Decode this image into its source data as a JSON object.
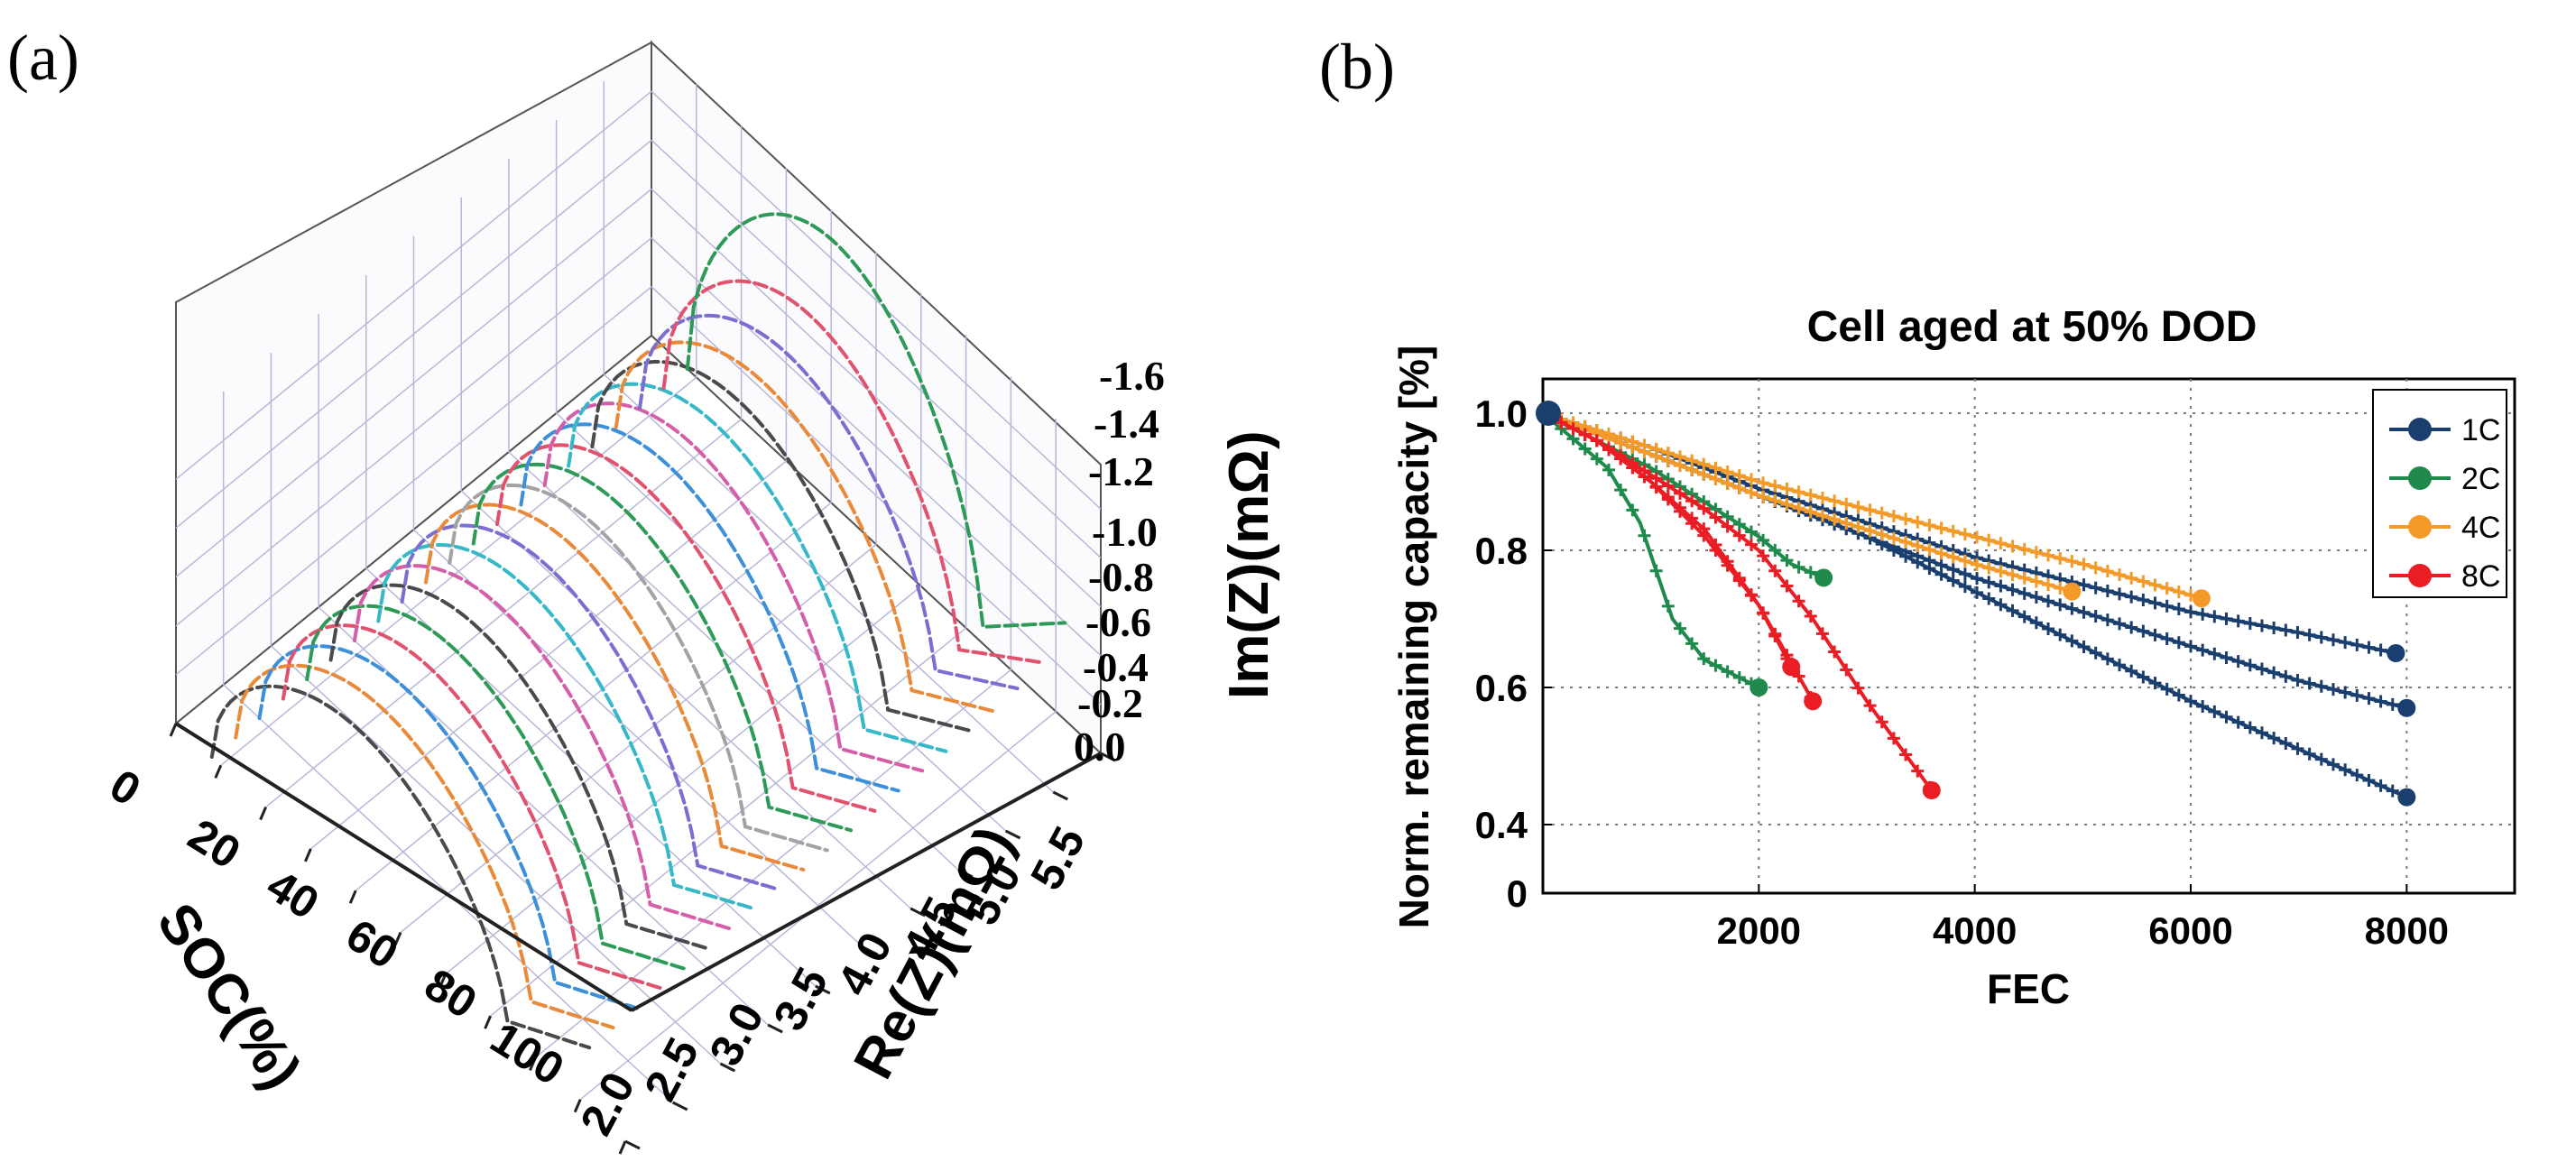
{
  "panels": {
    "a": "(a)",
    "b": "(b)"
  },
  "chart_data": [
    {
      "type": "3d-line",
      "panel": "(a)",
      "title": "",
      "xlabel": "SOC(%)",
      "ylabel": "Re(Z)(mΩ)",
      "zlabel": "Im(Z)(mΩ)",
      "soc_ticks": [
        "0",
        "20",
        "40",
        "60",
        "80",
        "100"
      ],
      "re_ticks": [
        "2.0",
        "2.5",
        "3.0",
        "3.5",
        "4.0",
        "4.5",
        "5.0",
        "5.5"
      ],
      "im_ticks": [
        "-1.6",
        "-1.4",
        "-1.2",
        "-1.0",
        "-0.8",
        "-0.6",
        "-0.4",
        "-0.2",
        "0.0"
      ],
      "soc_range": [
        0,
        100
      ],
      "re_range": [
        2.0,
        5.5
      ],
      "im_range": [
        0.0,
        -1.6
      ],
      "curve_soc": [
        0,
        5,
        10,
        15,
        20,
        25,
        30,
        35,
        40,
        45,
        50,
        55,
        60,
        65,
        70,
        75,
        80,
        85,
        90,
        95,
        100
      ],
      "curve_peak": [
        1.45,
        1.15,
        1.05,
        1.0,
        1.0,
        0.98,
        0.98,
        0.97,
        0.96,
        0.96,
        0.95,
        0.95,
        0.94,
        0.94,
        0.93,
        0.93,
        0.92,
        0.92,
        0.91,
        0.91,
        0.9
      ],
      "curve_colors": [
        "#2e9a58",
        "#e0526e",
        "#7a6fd0",
        "#e98a3a",
        "#4a4a4a",
        "#36b8c8",
        "#d45fa8",
        "#3d8fd8",
        "#e0526e",
        "#2e9a58",
        "#a3a3a3",
        "#e98a3a",
        "#7a6fd0",
        "#36b8c8",
        "#d45fa8",
        "#4a4a4a",
        "#2e9a58",
        "#e0526e",
        "#3d8fd8",
        "#e98a3a",
        "#4a4a4a"
      ]
    },
    {
      "type": "scatter",
      "panel": "(b)",
      "title": "Cell aged at 50% DOD",
      "xlabel": "FEC",
      "ylabel": "Norm. remaining capacity [%]",
      "xlim": [
        0,
        9000
      ],
      "ylim": [
        0.3,
        1.05
      ],
      "x_ticks": [
        2000,
        4000,
        6000,
        8000
      ],
      "x_tick_labels": [
        "2000",
        "4000",
        "6000",
        "8000"
      ],
      "y_ticks": [
        0.4,
        0.6,
        0.8,
        1.0
      ],
      "y_tick_labels": [
        "0.4",
        "0.6",
        "0.8",
        "1.0"
      ],
      "zero_label": "0",
      "grid": true,
      "legend_position": "top-right",
      "series": [
        {
          "name": "1C",
          "color": "#1a3e6e",
          "curves": [
            {
              "x": [
                0,
                1000,
                2000,
                3000,
                4000,
                5000,
                6000,
                7000,
                7900
              ],
              "y": [
                1.0,
                0.95,
                0.89,
                0.84,
                0.79,
                0.75,
                0.71,
                0.68,
                0.65
              ]
            },
            {
              "x": [
                0,
                1000,
                2000,
                3000,
                4000,
                5000,
                6000,
                7000,
                8000
              ],
              "y": [
                1.0,
                0.94,
                0.88,
                0.82,
                0.76,
                0.71,
                0.66,
                0.61,
                0.57
              ]
            },
            {
              "x": [
                0,
                1000,
                2000,
                3000,
                4000,
                5000,
                6000,
                7000,
                8000
              ],
              "y": [
                1.0,
                0.94,
                0.88,
                0.82,
                0.74,
                0.66,
                0.58,
                0.51,
                0.44
              ]
            }
          ]
        },
        {
          "name": "2C",
          "color": "#1f8a4c",
          "curves": [
            {
              "x": [
                0,
                300,
                600,
                900,
                1200,
                1500,
                2000
              ],
              "y": [
                1.0,
                0.96,
                0.92,
                0.84,
                0.7,
                0.64,
                0.6
              ]
            },
            {
              "x": [
                0,
                500,
                1000,
                1500,
                2000,
                2300,
                2600
              ],
              "y": [
                1.0,
                0.96,
                0.92,
                0.87,
                0.82,
                0.78,
                0.76
              ]
            }
          ]
        },
        {
          "name": "4C",
          "color": "#f39a28",
          "curves": [
            {
              "x": [
                0,
                1000,
                2000,
                3000,
                4000,
                5000,
                6100
              ],
              "y": [
                1.0,
                0.95,
                0.9,
                0.86,
                0.82,
                0.78,
                0.73
              ]
            },
            {
              "x": [
                0,
                1000,
                2000,
                3000,
                4000,
                4900
              ],
              "y": [
                1.0,
                0.94,
                0.88,
                0.83,
                0.78,
                0.74
              ]
            }
          ]
        },
        {
          "name": "8C",
          "color": "#ea1c24",
          "curves": [
            {
              "x": [
                0,
                500,
                1000,
                1500,
                2000,
                2500
              ],
              "y": [
                1.0,
                0.96,
                0.9,
                0.83,
                0.72,
                0.58
              ]
            },
            {
              "x": [
                0,
                500,
                1000,
                1500,
                2000,
                2500,
                3000,
                3600
              ],
              "y": [
                1.0,
                0.96,
                0.91,
                0.86,
                0.8,
                0.7,
                0.58,
                0.45
              ]
            },
            {
              "x": [
                0,
                500,
                1000,
                1500,
                2000,
                2300
              ],
              "y": [
                1.0,
                0.96,
                0.9,
                0.82,
                0.72,
                0.63
              ]
            }
          ]
        }
      ]
    }
  ]
}
